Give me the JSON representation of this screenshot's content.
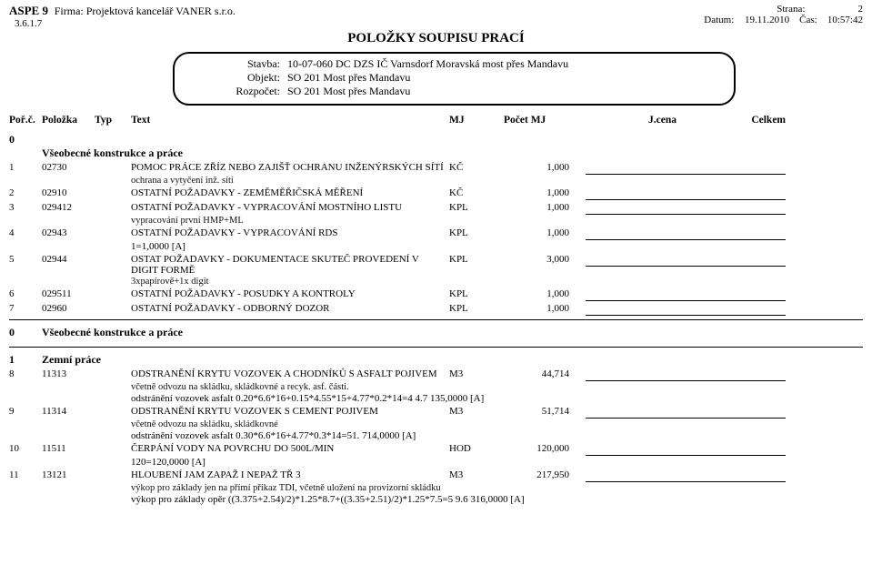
{
  "header": {
    "aspe": "ASPE 9",
    "version": "3.6.1.7",
    "firm_label": "Firma:",
    "firm_value": "Projektová kancelář VANER s.r.o.",
    "strana_label": "Strana:",
    "strana_value": "2",
    "datum_label": "Datum:",
    "datum_value": "19.11.2010",
    "cas_label": "Čas:",
    "cas_value": "10:57:42"
  },
  "title": "POLOŽKY SOUPISU PRACÍ",
  "meta": {
    "stavba_label": "Stavba:",
    "stavba_value": "10-07-060  DC DZS IČ Varnsdorf Moravská most přes Mandavu",
    "objekt_label": "Objekt:",
    "objekt_value": "SO 201  Most přes Mandavu",
    "rozpocet_label": "Rozpočet:",
    "rozpocet_value": "SO 201  Most přes Mandavu"
  },
  "columns": {
    "porc": "Poř.č.",
    "polozka": "Položka",
    "typ": "Typ",
    "text": "Text",
    "mj": "MJ",
    "pocet": "Počet MJ",
    "jcena": "J.cena",
    "celkem": "Celkem"
  },
  "section0": {
    "num": "0",
    "title": "Všeobecné konstrukce a práce"
  },
  "items": [
    {
      "por": "1",
      "code": "02730",
      "text": "POMOC PRÁCE ZŘÍZ NEBO ZAJIŠŤ OCHRANU INŽENÝRSKÝCH SÍTÍ",
      "mj": "KČ",
      "qty": "1,000",
      "note": "ochrana a vytyčení inž. sítí"
    },
    {
      "por": "2",
      "code": "02910",
      "text": "OSTATNÍ POŽADAVKY - ZEMĚMĚŘIČSKÁ MĚŘENÍ",
      "mj": "KČ",
      "qty": "1,000"
    },
    {
      "por": "3",
      "code": "029412",
      "text": "OSTATNÍ POŽADAVKY - VYPRACOVÁNÍ MOSTNÍHO LISTU",
      "mj": "KPL",
      "qty": "1,000",
      "note": "vypracování první HMP+ML"
    },
    {
      "por": "4",
      "code": "02943",
      "text": "OSTATNÍ POŽADAVKY - VYPRACOVÁNÍ RDS",
      "mj": "KPL",
      "qty": "1,000",
      "calc": "1=1,0000 [A]"
    },
    {
      "por": "5",
      "code": "02944",
      "text": "OSTAT POŽADAVKY - DOKUMENTACE SKUTEČ PROVEDENÍ V DIGIT FORMĚ",
      "mj": "KPL",
      "qty": "3,000",
      "note": "3xpapírově+1x digit"
    },
    {
      "por": "6",
      "code": "029511",
      "text": "OSTATNÍ POŽADAVKY - POSUDKY A KONTROLY",
      "mj": "KPL",
      "qty": "1,000"
    },
    {
      "por": "7",
      "code": "02960",
      "text": "OSTATNÍ POŽADAVKY - ODBORNÝ DOZOR",
      "mj": "KPL",
      "qty": "1,000"
    }
  ],
  "section0_sum": {
    "num": "0",
    "title": "Všeobecné konstrukce a práce"
  },
  "section1": {
    "num": "1",
    "title": "Zemní práce"
  },
  "items1": [
    {
      "por": "8",
      "code": "11313",
      "text": "ODSTRANĚNÍ KRYTU VOZOVEK A CHODNÍKŮ S ASFALT POJIVEM",
      "mj": "M3",
      "qty": "44,714",
      "note": "včetně odvozu na skládku, skládkovné a recyk. asf. části.",
      "calc": "odstránění vozovek asfalt 0.20*6.6*16+0.15*4.55*15+4.77*0.2*14=4 4.7 135,0000 [A]"
    },
    {
      "por": "9",
      "code": "11314",
      "text": "ODSTRANĚNÍ KRYTU VOZOVEK S CEMENT POJIVEM",
      "mj": "M3",
      "qty": "51,714",
      "note": "včetně odvozu na skládku, skládkovné",
      "calc": "odstránění vozovek asfalt 0.30*6.6*16+4.77*0.3*14=51. 714,0000 [A]"
    },
    {
      "por": "10",
      "code": "11511",
      "text": "ČERPÁNÍ VODY NA POVRCHU DO 500L/MIN",
      "mj": "HOD",
      "qty": "120,000",
      "calc": "120=120,0000 [A]"
    },
    {
      "por": "11",
      "code": "13121",
      "text": "HLOUBENÍ JAM ZAPAŽ I NEPAŽ TŘ 3",
      "mj": "M3",
      "qty": "217,950",
      "note": "výkop pro základy jen na přímí příkaz TDI, včetně uložení na provizorní skládku",
      "calc": "výkop pro základy opěr ((3.375+2.54)/2)*1.25*8.7+((3.35+2.51)/2)*1.25*7.5=5 9.6 316,0000 [A]"
    }
  ]
}
